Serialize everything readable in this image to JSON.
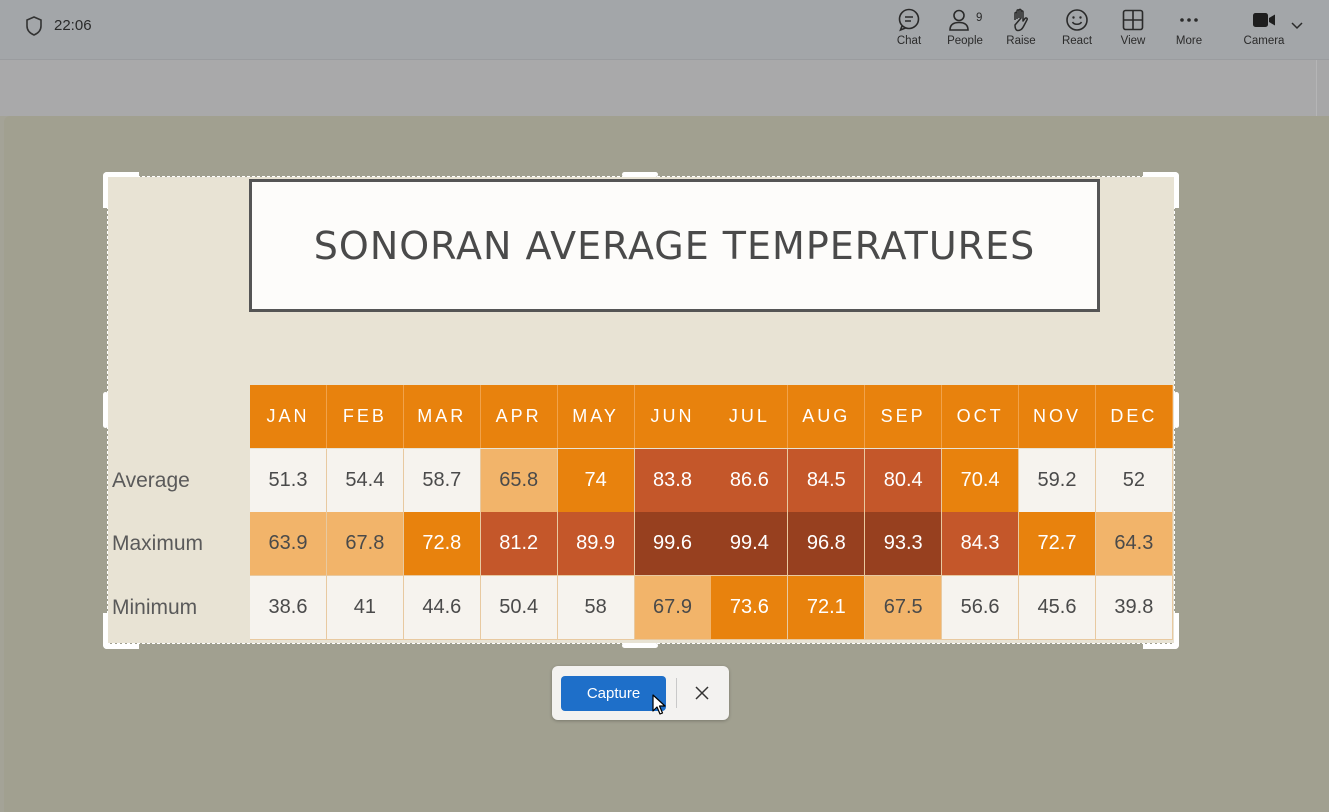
{
  "status": {
    "time": "22:06"
  },
  "toolbar": {
    "items": [
      {
        "id": "chat",
        "label": "Chat",
        "icon": "chat-icon"
      },
      {
        "id": "people",
        "label": "People",
        "icon": "people-icon",
        "count": "9"
      },
      {
        "id": "raise",
        "label": "Raise",
        "icon": "raise-hand-icon"
      },
      {
        "id": "react",
        "label": "React",
        "icon": "smiley-icon"
      },
      {
        "id": "view",
        "label": "View",
        "icon": "grid-icon"
      },
      {
        "id": "more",
        "label": "More",
        "icon": "more-icon"
      },
      {
        "id": "camera",
        "label": "Camera",
        "icon": "camera-icon"
      }
    ]
  },
  "slide": {
    "title": "SONORAN AVERAGE TEMPERATURES",
    "row_labels": [
      "Average",
      "Maximum",
      "Minimum"
    ]
  },
  "chart_data": {
    "type": "heatmap",
    "title": "SONORAN AVERAGE TEMPERATURES",
    "categories": [
      "JAN",
      "FEB",
      "MAR",
      "APR",
      "MAY",
      "JUN",
      "JUL",
      "AUG",
      "SEP",
      "OCT",
      "NOV",
      "DEC"
    ],
    "series": [
      {
        "name": "Average",
        "values": [
          51.3,
          54.4,
          58.7,
          65.8,
          74,
          83.8,
          86.6,
          84.5,
          80.4,
          70.4,
          59.2,
          52
        ]
      },
      {
        "name": "Maximum",
        "values": [
          63.9,
          67.8,
          72.8,
          81.2,
          89.9,
          99.6,
          99.4,
          96.8,
          93.3,
          84.3,
          72.7,
          64.3
        ]
      },
      {
        "name": "Minimum",
        "values": [
          38.6,
          41,
          44.6,
          50.4,
          58,
          67.9,
          73.6,
          72.1,
          67.5,
          56.6,
          45.6,
          39.8
        ]
      }
    ],
    "colors": {
      "header": "#e8820d",
      "light": "#f6f3ee",
      "pale_orange": "#f2b46a",
      "orange": "#e8820d",
      "rust": "#c4572a",
      "dark_rust": "#97401f"
    }
  },
  "capture_popup": {
    "capture_label": "Capture",
    "close_icon": "close-icon"
  },
  "colors": {
    "capture_button": "#1e6fc9"
  }
}
